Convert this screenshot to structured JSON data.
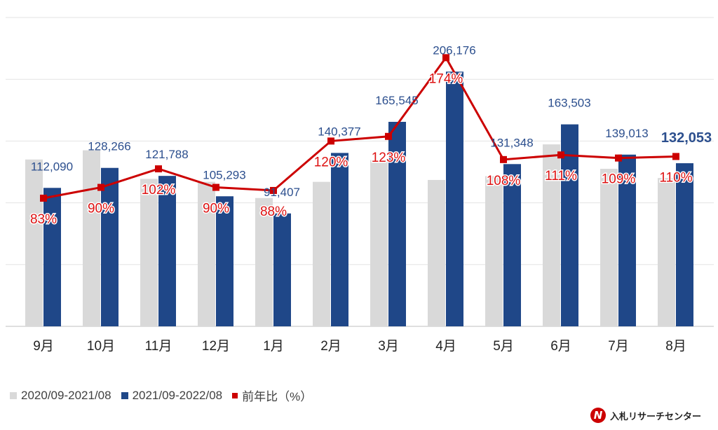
{
  "chart_data": {
    "type": "bar",
    "categories": [
      "9月",
      "10月",
      "11月",
      "12月",
      "1月",
      "2月",
      "3月",
      "4月",
      "5月",
      "6月",
      "7月",
      "8月"
    ],
    "series": [
      {
        "name": "2020/09-2021/08",
        "type": "bar",
        "color": "#d9d9d9",
        "values": [
          135048,
          142518,
          119400,
          116992,
          103872,
          116981,
          134589,
          118492,
          121619,
          147300,
          127535,
          120048
        ]
      },
      {
        "name": "2021/09-2022/08",
        "type": "bar",
        "color": "#1f4788",
        "values": [
          112090,
          128266,
          121788,
          105293,
          91407,
          140377,
          165545,
          206176,
          131348,
          163503,
          139013,
          132053
        ],
        "labels": [
          "112,090",
          "128,266",
          "121,788",
          "105,293",
          "91,407",
          "140,377",
          "165,545",
          "206,176",
          "131,348",
          "163,503",
          "139,013",
          "132,053"
        ]
      },
      {
        "name": "前年比（%）",
        "type": "line",
        "color": "#cc0000",
        "axis": "secondary",
        "values": [
          83,
          90,
          102,
          90,
          88,
          120,
          123,
          174,
          108,
          111,
          109,
          110
        ],
        "labels": [
          "83%",
          "90%",
          "102%",
          "90%",
          "88%",
          "120%",
          "123%",
          "174%",
          "108%",
          "111%",
          "109%",
          "110%"
        ]
      }
    ],
    "ylim": [
      0,
      250000
    ],
    "y2lim": [
      0,
      200
    ],
    "grid": true,
    "legend_position": "bottom-left",
    "title": "",
    "xlabel": "",
    "ylabel": ""
  },
  "logo": {
    "text": "入札リサーチセンター",
    "mark": "N"
  }
}
